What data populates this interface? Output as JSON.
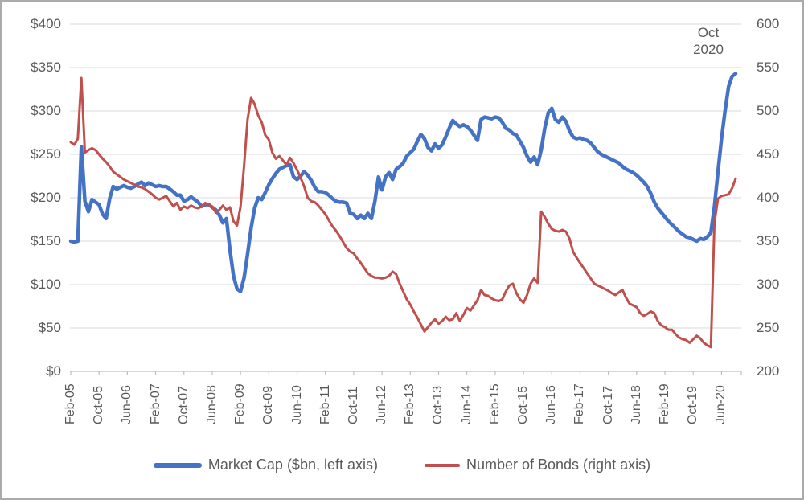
{
  "chart_data": {
    "type": "line",
    "title": "",
    "frequency": "monthly",
    "x_start": "Feb-2005",
    "x_end": "Oct-2020",
    "grid": "horizontal",
    "legend_position": "bottom",
    "annotation": {
      "text": "Oct 2020",
      "line1": "Oct",
      "line2": "2020"
    },
    "left_axis": {
      "min": 0,
      "max": 400,
      "tick_step": 50,
      "ticks": [
        "$0",
        "$50",
        "$100",
        "$150",
        "$200",
        "$250",
        "$300",
        "$350",
        "$400"
      ]
    },
    "right_axis": {
      "min": 200,
      "max": 600,
      "tick_step": 50,
      "ticks": [
        "200",
        "250",
        "300",
        "350",
        "400",
        "450",
        "500",
        "550",
        "600"
      ]
    },
    "x_tick_labels": [
      "Feb-05",
      "Oct-05",
      "Jun-06",
      "Feb-07",
      "Oct-07",
      "Jun-08",
      "Feb-09",
      "Oct-09",
      "Jun-10",
      "Feb-11",
      "Oct-11",
      "Jun-12",
      "Feb-13",
      "Oct-13",
      "Jun-14",
      "Feb-15",
      "Oct-15",
      "Jun-16",
      "Feb-17",
      "Oct-17",
      "Jun-18",
      "Feb-19",
      "Oct-19",
      "Jun-20"
    ],
    "series": [
      {
        "name": "Market Cap ($bn, left axis)",
        "axis": "left",
        "color": "#4472c4",
        "stroke_width": 4.5,
        "values": [
          150,
          149,
          150,
          259,
          196,
          184,
          198,
          195,
          192,
          181,
          176,
          199,
          213,
          210,
          212,
          214,
          212,
          211,
          213,
          216,
          218,
          214,
          217,
          215,
          213,
          214,
          213,
          213,
          210,
          207,
          203,
          203,
          196,
          198,
          201,
          198,
          195,
          190,
          192,
          192,
          189,
          186,
          180,
          171,
          176,
          140,
          110,
          95,
          92,
          108,
          135,
          165,
          188,
          200,
          198,
          206,
          215,
          222,
          228,
          233,
          235,
          237,
          238,
          224,
          221,
          225,
          230,
          226,
          220,
          212,
          207,
          207,
          206,
          203,
          199,
          196,
          195,
          195,
          194,
          182,
          181,
          176,
          180,
          176,
          182,
          176,
          196,
          224,
          209,
          224,
          229,
          221,
          233,
          236,
          240,
          248,
          252,
          256,
          265,
          273,
          268,
          258,
          254,
          262,
          257,
          261,
          270,
          280,
          289,
          285,
          282,
          284,
          282,
          278,
          272,
          266,
          290,
          293,
          292,
          291,
          293,
          292,
          287,
          280,
          278,
          274,
          272,
          265,
          258,
          248,
          241,
          247,
          238,
          255,
          280,
          298,
          303,
          290,
          287,
          293,
          288,
          277,
          270,
          268,
          269,
          267,
          266,
          263,
          258,
          253,
          250,
          248,
          246,
          244,
          242,
          240,
          236,
          233,
          231,
          229,
          226,
          222,
          218,
          213,
          205,
          195,
          188,
          183,
          178,
          173,
          169,
          165,
          161,
          158,
          155,
          154,
          152,
          150,
          153,
          152,
          155,
          160,
          190,
          230,
          268,
          300,
          328,
          340,
          343
        ]
      },
      {
        "name": "Number of Bonds (right axis)",
        "axis": "right",
        "color": "#c0504d",
        "stroke_width": 3,
        "values": [
          464,
          461,
          468,
          538,
          452,
          455,
          457,
          455,
          450,
          445,
          441,
          436,
          430,
          427,
          424,
          421,
          419,
          417,
          415,
          413,
          412,
          410,
          407,
          404,
          400,
          398,
          400,
          402,
          396,
          390,
          394,
          386,
          390,
          388,
          391,
          389,
          388,
          390,
          394,
          392,
          390,
          383,
          386,
          391,
          386,
          389,
          373,
          368,
          390,
          437,
          490,
          515,
          508,
          495,
          487,
          472,
          467,
          452,
          445,
          448,
          443,
          438,
          446,
          440,
          432,
          423,
          413,
          400,
          396,
          395,
          391,
          386,
          381,
          374,
          367,
          362,
          356,
          349,
          342,
          338,
          336,
          330,
          325,
          319,
          313,
          310,
          308,
          308,
          307,
          308,
          310,
          315,
          312,
          301,
          292,
          283,
          277,
          269,
          262,
          254,
          246,
          251,
          256,
          260,
          255,
          258,
          263,
          259,
          260,
          267,
          258,
          265,
          273,
          270,
          276,
          282,
          294,
          288,
          287,
          284,
          282,
          281,
          283,
          292,
          299,
          301,
          290,
          283,
          279,
          288,
          301,
          307,
          302,
          384,
          378,
          370,
          364,
          362,
          361,
          363,
          361,
          353,
          338,
          331,
          325,
          319,
          313,
          307,
          301,
          299,
          297,
          295,
          293,
          290,
          288,
          291,
          294,
          285,
          278,
          276,
          274,
          267,
          264,
          266,
          269,
          267,
          258,
          253,
          251,
          248,
          248,
          243,
          239,
          237,
          236,
          233,
          237,
          241,
          238,
          233,
          230,
          228,
          371,
          399,
          402,
          403,
          404,
          411,
          422
        ]
      }
    ],
    "colors": {
      "gridline": "#d9d9d9",
      "axis": "#bfbfbf",
      "text": "#595959"
    }
  }
}
